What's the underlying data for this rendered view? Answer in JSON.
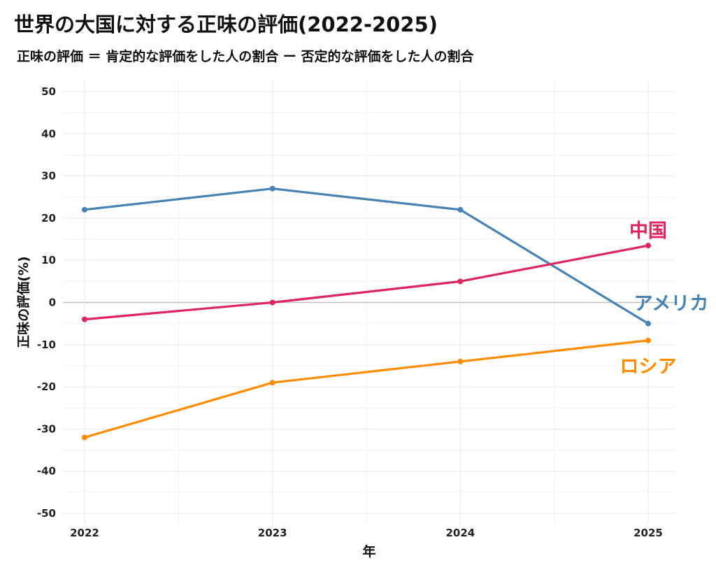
{
  "chart_data": {
    "type": "line",
    "title": "世界の大国に対する正味の評価(2022-2025)",
    "subtitle": "正味の評価 ＝ 肯定的な評価をした人の割合 ー 否定的な評価をした人の割合",
    "xlabel": "年",
    "ylabel": "正味の評価(%)",
    "x": [
      2022,
      2023,
      2024,
      2025
    ],
    "xlim": [
      2021.9,
      2025.15
    ],
    "ylim": [
      -52,
      53
    ],
    "yticks": [
      50,
      40,
      30,
      20,
      10,
      0,
      -10,
      -20,
      -30,
      -40,
      -50
    ],
    "grid": true,
    "legend": "direct-labels-right",
    "series": [
      {
        "name": "アメリカ",
        "color": "#4682B4",
        "values": [
          22,
          27,
          22,
          -5
        ]
      },
      {
        "name": "中国",
        "color": "#E0245E",
        "values": [
          -4,
          0,
          5,
          13.5
        ]
      },
      {
        "name": "ロシア",
        "color": "#FF8C00",
        "values": [
          -32,
          -19,
          -14,
          -9
        ]
      }
    ]
  }
}
